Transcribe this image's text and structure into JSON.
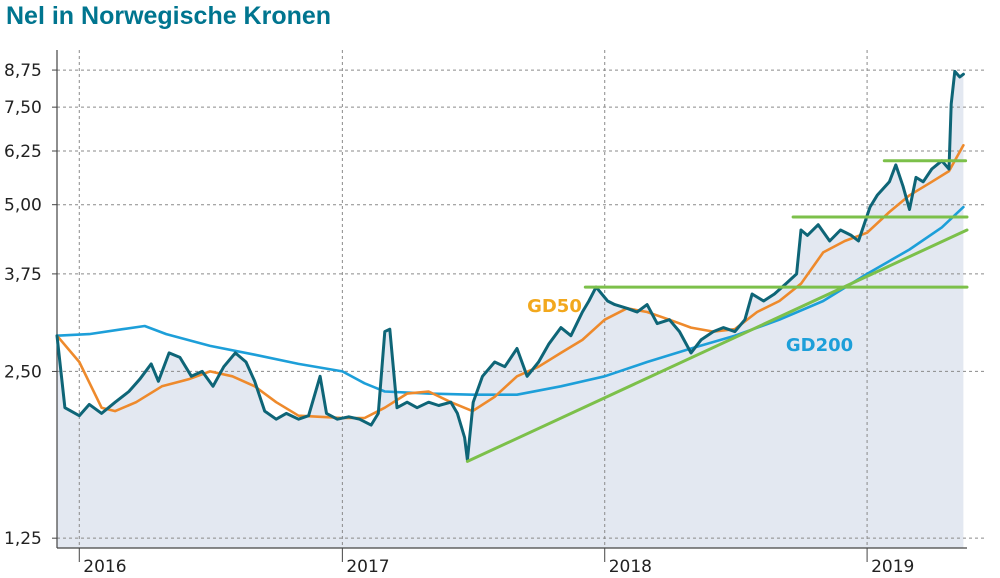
{
  "title": "Nel in Norwegische Kronen",
  "chart_data": {
    "type": "line",
    "title": "Nel in Norwegische Kronen",
    "ylabel": "",
    "xlabel": "",
    "y_scale": "log",
    "ylim": [
      1.2,
      9.2
    ],
    "xlim": [
      "2015-12-01",
      "2019-05-20"
    ],
    "yticks": [
      "8,75",
      "7,50",
      "6,25",
      "5,00",
      "3,75",
      "2,50",
      "1,25"
    ],
    "ytick_values": [
      8.75,
      7.5,
      6.25,
      5.0,
      3.75,
      2.5,
      1.25
    ],
    "xticks": [
      "2016",
      "2017",
      "2018",
      "2019"
    ],
    "xtick_dates": [
      "2016-01-01",
      "2017-01-01",
      "2018-01-01",
      "2019-01-01"
    ],
    "grid": true,
    "colors": {
      "price": "#0e6577",
      "gd50": "#ee8a2c",
      "gd200": "#1d9fd9",
      "trend": "#7cc04a",
      "area": "#e3e8f1",
      "title": "#00758f",
      "grid": "#8a8a8a"
    },
    "annotations": [
      {
        "text": "GD50",
        "date": "2017-09-15",
        "value": 3.2,
        "color": "#f2a81d"
      },
      {
        "text": "GD200",
        "date": "2018-09-10",
        "value": 2.72,
        "color": "#1d9fd9"
      }
    ],
    "series": [
      {
        "role": "price",
        "points": [
          [
            "2015-12-01",
            2.9
          ],
          [
            "2015-12-12",
            2.15
          ],
          [
            "2016-01-01",
            2.08
          ],
          [
            "2016-01-15",
            2.18
          ],
          [
            "2016-02-01",
            2.1
          ],
          [
            "2016-02-20",
            2.2
          ],
          [
            "2016-03-10",
            2.3
          ],
          [
            "2016-03-25",
            2.42
          ],
          [
            "2016-04-10",
            2.58
          ],
          [
            "2016-04-20",
            2.4
          ],
          [
            "2016-05-05",
            2.7
          ],
          [
            "2016-05-20",
            2.65
          ],
          [
            "2016-06-05",
            2.45
          ],
          [
            "2016-06-20",
            2.5
          ],
          [
            "2016-07-05",
            2.35
          ],
          [
            "2016-07-20",
            2.55
          ],
          [
            "2016-08-05",
            2.7
          ],
          [
            "2016-08-20",
            2.6
          ],
          [
            "2016-09-01",
            2.4
          ],
          [
            "2016-09-15",
            2.12
          ],
          [
            "2016-10-01",
            2.05
          ],
          [
            "2016-10-15",
            2.1
          ],
          [
            "2016-11-01",
            2.05
          ],
          [
            "2016-11-15",
            2.08
          ],
          [
            "2016-12-01",
            2.45
          ],
          [
            "2016-12-10",
            2.1
          ],
          [
            "2016-12-25",
            2.05
          ],
          [
            "2017-01-10",
            2.07
          ],
          [
            "2017-01-25",
            2.05
          ],
          [
            "2017-02-10",
            2.0
          ],
          [
            "2017-02-20",
            2.1
          ],
          [
            "2017-03-01",
            2.95
          ],
          [
            "2017-03-08",
            2.98
          ],
          [
            "2017-03-18",
            2.15
          ],
          [
            "2017-04-01",
            2.2
          ],
          [
            "2017-04-15",
            2.15
          ],
          [
            "2017-05-01",
            2.2
          ],
          [
            "2017-05-15",
            2.17
          ],
          [
            "2017-06-01",
            2.2
          ],
          [
            "2017-06-10",
            2.1
          ],
          [
            "2017-06-20",
            1.9
          ],
          [
            "2017-06-24",
            1.73
          ],
          [
            "2017-07-02",
            2.2
          ],
          [
            "2017-07-15",
            2.45
          ],
          [
            "2017-08-01",
            2.6
          ],
          [
            "2017-08-15",
            2.55
          ],
          [
            "2017-09-01",
            2.75
          ],
          [
            "2017-09-15",
            2.45
          ],
          [
            "2017-10-01",
            2.6
          ],
          [
            "2017-10-15",
            2.8
          ],
          [
            "2017-11-01",
            3.0
          ],
          [
            "2017-11-15",
            2.9
          ],
          [
            "2017-12-01",
            3.2
          ],
          [
            "2017-12-10",
            3.35
          ],
          [
            "2017-12-20",
            3.55
          ],
          [
            "2018-01-05",
            3.35
          ],
          [
            "2018-01-15",
            3.3
          ],
          [
            "2018-02-01",
            3.25
          ],
          [
            "2018-02-15",
            3.2
          ],
          [
            "2018-03-01",
            3.3
          ],
          [
            "2018-03-15",
            3.05
          ],
          [
            "2018-04-01",
            3.1
          ],
          [
            "2018-04-15",
            2.95
          ],
          [
            "2018-05-01",
            2.7
          ],
          [
            "2018-05-15",
            2.85
          ],
          [
            "2018-06-01",
            2.95
          ],
          [
            "2018-06-15",
            3.0
          ],
          [
            "2018-07-01",
            2.95
          ],
          [
            "2018-07-15",
            3.1
          ],
          [
            "2018-07-25",
            3.45
          ],
          [
            "2018-08-10",
            3.35
          ],
          [
            "2018-08-25",
            3.45
          ],
          [
            "2018-09-10",
            3.6
          ],
          [
            "2018-09-25",
            3.75
          ],
          [
            "2018-10-01",
            4.5
          ],
          [
            "2018-10-10",
            4.4
          ],
          [
            "2018-10-25",
            4.6
          ],
          [
            "2018-11-10",
            4.3
          ],
          [
            "2018-11-25",
            4.5
          ],
          [
            "2018-12-10",
            4.4
          ],
          [
            "2018-12-20",
            4.3
          ],
          [
            "2019-01-05",
            4.95
          ],
          [
            "2019-01-15",
            5.2
          ],
          [
            "2019-02-01",
            5.5
          ],
          [
            "2019-02-10",
            5.9
          ],
          [
            "2019-02-20",
            5.4
          ],
          [
            "2019-03-01",
            4.9
          ],
          [
            "2019-03-10",
            5.6
          ],
          [
            "2019-03-20",
            5.5
          ],
          [
            "2019-04-01",
            5.8
          ],
          [
            "2019-04-15",
            6.0
          ],
          [
            "2019-04-25",
            5.8
          ],
          [
            "2019-04-28",
            7.6
          ],
          [
            "2019-05-03",
            8.7
          ],
          [
            "2019-05-10",
            8.5
          ],
          [
            "2019-05-15",
            8.6
          ]
        ]
      },
      {
        "name": "GD50",
        "role": "gd50",
        "points": [
          [
            "2015-12-01",
            2.9
          ],
          [
            "2016-01-01",
            2.6
          ],
          [
            "2016-02-01",
            2.15
          ],
          [
            "2016-02-20",
            2.12
          ],
          [
            "2016-03-20",
            2.2
          ],
          [
            "2016-04-25",
            2.35
          ],
          [
            "2016-06-01",
            2.42
          ],
          [
            "2016-07-01",
            2.5
          ],
          [
            "2016-08-01",
            2.45
          ],
          [
            "2016-09-01",
            2.35
          ],
          [
            "2016-10-01",
            2.2
          ],
          [
            "2016-11-01",
            2.08
          ],
          [
            "2016-12-01",
            2.07
          ],
          [
            "2017-01-01",
            2.06
          ],
          [
            "2017-02-01",
            2.06
          ],
          [
            "2017-03-01",
            2.15
          ],
          [
            "2017-04-01",
            2.28
          ],
          [
            "2017-05-01",
            2.3
          ],
          [
            "2017-06-01",
            2.2
          ],
          [
            "2017-07-01",
            2.12
          ],
          [
            "2017-08-01",
            2.25
          ],
          [
            "2017-09-01",
            2.45
          ],
          [
            "2017-10-01",
            2.55
          ],
          [
            "2017-11-01",
            2.7
          ],
          [
            "2017-12-01",
            2.85
          ],
          [
            "2018-01-01",
            3.1
          ],
          [
            "2018-02-01",
            3.25
          ],
          [
            "2018-03-01",
            3.2
          ],
          [
            "2018-04-01",
            3.1
          ],
          [
            "2018-05-01",
            3.0
          ],
          [
            "2018-06-01",
            2.95
          ],
          [
            "2018-07-01",
            2.98
          ],
          [
            "2018-08-01",
            3.2
          ],
          [
            "2018-09-01",
            3.35
          ],
          [
            "2018-10-01",
            3.6
          ],
          [
            "2018-11-01",
            4.1
          ],
          [
            "2018-12-01",
            4.3
          ],
          [
            "2019-01-01",
            4.45
          ],
          [
            "2019-02-01",
            4.85
          ],
          [
            "2019-03-01",
            5.2
          ],
          [
            "2019-04-01",
            5.5
          ],
          [
            "2019-04-25",
            5.75
          ],
          [
            "2019-05-15",
            6.4
          ]
        ]
      },
      {
        "name": "GD200",
        "role": "gd200",
        "points": [
          [
            "2015-12-01",
            2.9
          ],
          [
            "2016-01-15",
            2.92
          ],
          [
            "2016-03-01",
            2.98
          ],
          [
            "2016-04-01",
            3.02
          ],
          [
            "2016-05-01",
            2.92
          ],
          [
            "2016-07-01",
            2.78
          ],
          [
            "2016-09-01",
            2.68
          ],
          [
            "2016-11-01",
            2.58
          ],
          [
            "2017-01-01",
            2.5
          ],
          [
            "2017-02-01",
            2.38
          ],
          [
            "2017-03-01",
            2.3
          ],
          [
            "2017-05-01",
            2.28
          ],
          [
            "2017-07-01",
            2.27
          ],
          [
            "2017-09-01",
            2.27
          ],
          [
            "2017-11-01",
            2.35
          ],
          [
            "2018-01-01",
            2.45
          ],
          [
            "2018-03-01",
            2.6
          ],
          [
            "2018-05-01",
            2.75
          ],
          [
            "2018-07-01",
            2.9
          ],
          [
            "2018-09-01",
            3.1
          ],
          [
            "2018-11-01",
            3.35
          ],
          [
            "2019-01-01",
            3.75
          ],
          [
            "2019-03-01",
            4.15
          ],
          [
            "2019-04-15",
            4.55
          ],
          [
            "2019-05-15",
            4.95
          ]
        ]
      },
      {
        "role": "trend",
        "points": [
          [
            "2017-06-24",
            1.72
          ],
          [
            "2019-05-20",
            4.5
          ]
        ]
      },
      {
        "role": "trend",
        "points": [
          [
            "2017-12-05",
            3.55
          ],
          [
            "2019-05-20",
            3.55
          ]
        ]
      },
      {
        "role": "trend",
        "points": [
          [
            "2018-09-20",
            4.75
          ],
          [
            "2019-05-20",
            4.75
          ]
        ]
      },
      {
        "role": "trend",
        "points": [
          [
            "2019-01-25",
            6.0
          ],
          [
            "2019-05-18",
            6.0
          ]
        ]
      }
    ]
  }
}
